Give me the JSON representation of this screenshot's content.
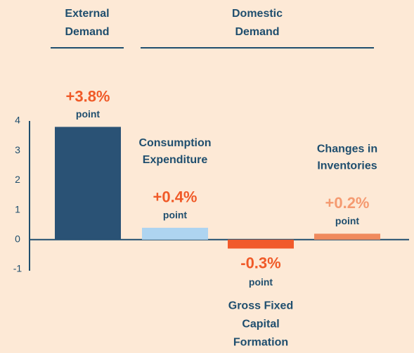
{
  "chart_data": {
    "type": "bar",
    "groups": [
      {
        "label": [
          "External",
          "Demand"
        ]
      },
      {
        "label": [
          "Domestic",
          "Demand"
        ]
      }
    ],
    "categories": [
      null,
      [
        "Consumption",
        "Expenditure"
      ],
      [
        "Gross Fixed",
        "Capital",
        "Formation"
      ],
      [
        "Changes in",
        "Inventories"
      ]
    ],
    "values": [
      3.8,
      0.4,
      -0.3,
      0.2
    ],
    "value_labels": [
      "+3.8%",
      "+0.4%",
      "-0.3%",
      "+0.2%"
    ],
    "value_unit": "point",
    "colors": [
      "#2a5275",
      "#aed4f0",
      "#f15a2b",
      "#f08a5d"
    ],
    "label_colors": [
      "#f05a28",
      "#f05a28",
      "#f05a28",
      "#f59a70"
    ],
    "ylim": [
      -1,
      4
    ],
    "yticks": [
      -1,
      0,
      1,
      2,
      3,
      4
    ]
  }
}
